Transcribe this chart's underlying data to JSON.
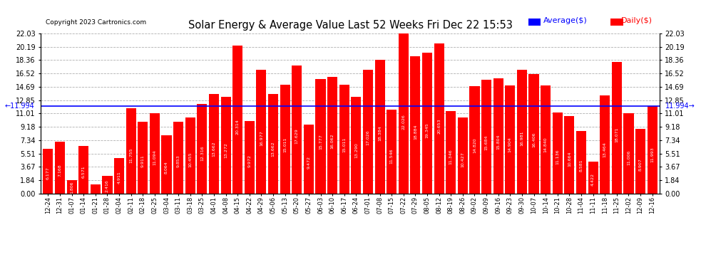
{
  "title": "Solar Energy & Average Value Last 52 Weeks Fri Dec 22 15:53",
  "copyright": "Copyright 2023 Cartronics.com",
  "average_value": 11.994,
  "average_label": "11.994",
  "bar_color": "#ff0000",
  "average_line_color": "#0000ff",
  "background_color": "#ffffff",
  "plot_bg_color": "#ffffff",
  "grid_color": "#b0b0b0",
  "legend_average_color": "#0000ff",
  "legend_daily_color": "#ff0000",
  "ylim": [
    0,
    22.03
  ],
  "yticks": [
    0.0,
    1.84,
    3.67,
    5.51,
    7.34,
    9.18,
    11.01,
    12.85,
    14.69,
    16.52,
    18.36,
    20.19,
    22.03
  ],
  "categories": [
    "12-24",
    "12-31",
    "01-07",
    "01-14",
    "01-21",
    "01-28",
    "02-04",
    "02-11",
    "02-18",
    "02-25",
    "03-04",
    "03-11",
    "03-18",
    "03-25",
    "04-01",
    "04-08",
    "04-15",
    "04-22",
    "04-29",
    "05-06",
    "05-13",
    "05-20",
    "05-27",
    "06-03",
    "06-10",
    "06-17",
    "06-24",
    "07-01",
    "07-08",
    "07-15",
    "07-22",
    "07-29",
    "08-05",
    "08-12",
    "08-19",
    "08-26",
    "09-02",
    "09-09",
    "09-16",
    "09-23",
    "09-30",
    "10-07",
    "10-14",
    "10-21",
    "10-28",
    "11-04",
    "11-11",
    "11-18",
    "11-25",
    "12-02",
    "12-09",
    "12-16"
  ],
  "values": [
    6.177,
    7.168,
    1.806,
    6.571,
    1.293,
    2.416,
    4.911,
    11.755,
    9.911,
    11.094,
    8.064,
    9.853,
    10.455,
    12.316,
    13.662,
    13.272,
    20.314,
    9.972,
    16.977,
    13.662,
    15.011,
    17.629,
    9.472,
    15.777,
    16.062,
    15.011,
    13.29,
    17.026,
    18.384,
    11.546,
    22.026,
    18.884,
    19.345,
    20.653,
    11.346,
    10.427,
    14.82,
    15.684,
    15.804,
    14.904,
    16.981,
    16.406,
    14.84,
    11.136,
    10.664,
    8.581,
    4.422,
    13.464,
    18.071,
    11.006,
    8.907,
    11.993
  ]
}
